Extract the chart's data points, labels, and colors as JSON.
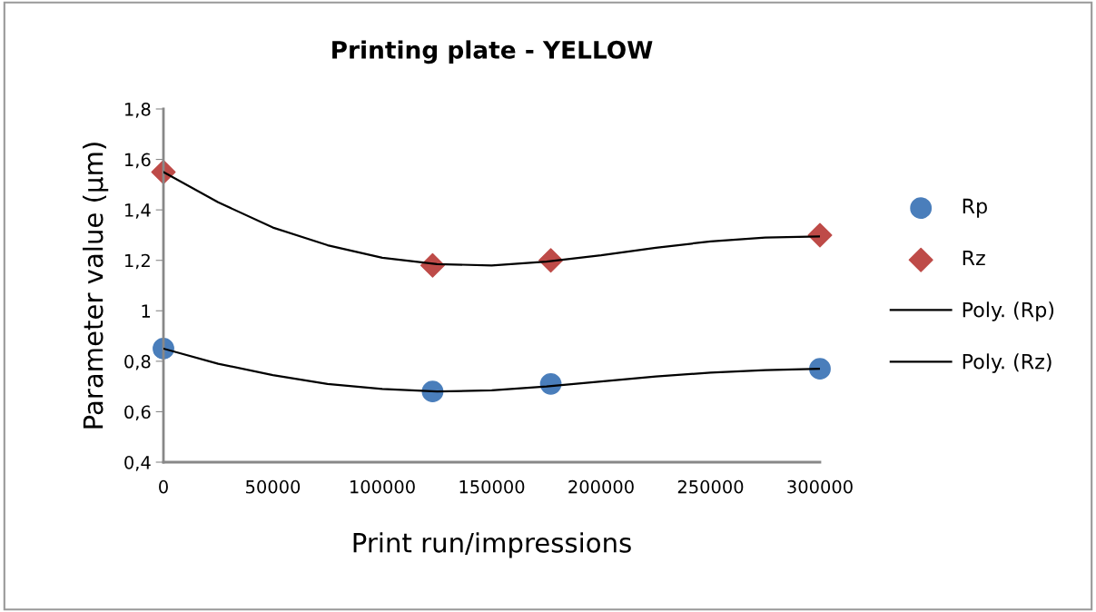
{
  "chart_data": {
    "type": "scatter",
    "title": "Printing plate - YELLOW",
    "xlabel": "Print run/impressions",
    "ylabel": "Parameter value (µm)",
    "xlim": [
      0,
      300000
    ],
    "xticks": [
      0,
      50000,
      100000,
      150000,
      200000,
      250000,
      300000
    ],
    "ylim": [
      0.4,
      1.8
    ],
    "yticks": [
      {
        "value": 0.4,
        "label": "0,4"
      },
      {
        "value": 0.6,
        "label": "0,6"
      },
      {
        "value": 0.8,
        "label": "0,8"
      },
      {
        "value": 1,
        "label": "1"
      },
      {
        "value": 1.2,
        "label": "1,2"
      },
      {
        "value": 1.4,
        "label": "1,4"
      },
      {
        "value": 1.6,
        "label": "1,6"
      },
      {
        "value": 1.8,
        "label": "1,8"
      }
    ],
    "grid": false,
    "legend": "right",
    "series": [
      {
        "name": "Rp",
        "marker": "circle",
        "color": "#4a7ebb",
        "x": [
          0,
          123000,
          177000,
          300000
        ],
        "values": [
          0.85,
          0.68,
          0.71,
          0.77
        ]
      },
      {
        "name": "Rz",
        "marker": "diamond",
        "color": "#be4b48",
        "x": [
          0,
          123000,
          177000,
          300000
        ],
        "values": [
          1.55,
          1.18,
          1.2,
          1.3
        ]
      },
      {
        "name": "Poly. (Rp)",
        "type": "line",
        "marker": "none",
        "color": "#000000",
        "x": [
          0,
          25000,
          50000,
          75000,
          100000,
          125000,
          150000,
          175000,
          200000,
          225000,
          250000,
          275000,
          300000
        ],
        "values": [
          0.85,
          0.79,
          0.745,
          0.71,
          0.69,
          0.68,
          0.685,
          0.7,
          0.72,
          0.74,
          0.755,
          0.765,
          0.77
        ]
      },
      {
        "name": "Poly. (Rz)",
        "type": "line",
        "marker": "none",
        "color": "#000000",
        "x": [
          0,
          25000,
          50000,
          75000,
          100000,
          125000,
          150000,
          175000,
          200000,
          225000,
          250000,
          275000,
          300000
        ],
        "values": [
          1.55,
          1.43,
          1.33,
          1.26,
          1.21,
          1.185,
          1.18,
          1.195,
          1.22,
          1.25,
          1.275,
          1.29,
          1.295
        ]
      }
    ]
  }
}
